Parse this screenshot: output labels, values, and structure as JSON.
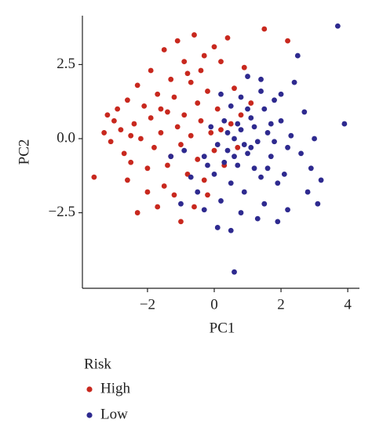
{
  "chart_data": {
    "type": "scatter",
    "x_label": "PC1",
    "y_label": "PC2",
    "legend_title": "Risk",
    "xlim": [
      -3.95,
      4.35
    ],
    "ylim": [
      -5.05,
      4.15
    ],
    "xticks": [
      {
        "value": -2,
        "label": "−2"
      },
      0,
      2,
      4
    ],
    "yticks": [
      {
        "value": -2.5,
        "label": "−2.5"
      },
      {
        "value": 0,
        "label": "0.0"
      },
      2.5
    ],
    "series": [
      {
        "name": "High",
        "color": "#c8281e",
        "x": [
          -3.6,
          -3.2,
          -3.0,
          -2.9,
          -2.8,
          -2.7,
          -2.6,
          -2.5,
          -2.4,
          -2.3,
          -2.3,
          -2.2,
          -2.1,
          -2.0,
          -1.9,
          -1.9,
          -1.8,
          -1.7,
          -1.7,
          -1.6,
          -1.5,
          -1.5,
          -1.4,
          -1.3,
          -1.3,
          -1.2,
          -1.1,
          -1.1,
          -1.0,
          -1.0,
          -0.9,
          -0.9,
          -0.8,
          -0.7,
          -0.7,
          -0.6,
          -0.6,
          -0.5,
          -0.5,
          -0.4,
          -0.3,
          -0.3,
          -0.2,
          -0.1,
          0.0,
          0.0,
          0.1,
          0.2,
          0.3,
          0.4,
          0.5,
          0.6,
          0.7,
          0.9,
          1.1,
          1.5,
          2.2,
          -3.3,
          -2.0,
          -1.2,
          -0.8,
          -0.2,
          -1.6,
          -2.5,
          -3.1,
          0.2,
          -0.4,
          -1.4,
          -2.6,
          0.8
        ],
        "values": [
          -1.3,
          0.8,
          0.6,
          1.0,
          0.3,
          -0.5,
          1.3,
          -0.8,
          0.5,
          1.8,
          -2.5,
          0.0,
          1.1,
          -1.0,
          2.3,
          0.7,
          -0.3,
          1.5,
          -2.3,
          0.2,
          3.0,
          -1.6,
          0.9,
          2.0,
          -0.6,
          1.4,
          0.4,
          3.3,
          -2.8,
          -0.2,
          2.6,
          0.8,
          -1.2,
          1.9,
          0.1,
          3.5,
          -2.3,
          1.2,
          -0.7,
          0.6,
          2.8,
          -1.4,
          1.6,
          0.2,
          3.1,
          -0.4,
          1.0,
          2.6,
          -0.9,
          3.4,
          0.5,
          1.7,
          -0.3,
          2.4,
          1.2,
          3.7,
          3.3,
          0.2,
          -1.8,
          -1.9,
          2.2,
          -1.9,
          1.0,
          0.1,
          -0.1,
          0.3,
          2.3,
          -0.9,
          -1.4,
          0.8
        ]
      },
      {
        "name": "Low",
        "color": "#2e2a8f",
        "x": [
          3.7,
          3.9,
          0.6,
          0.1,
          0.5,
          2.5,
          2.2,
          3.1,
          2.9,
          2.7,
          2.4,
          2.2,
          2.0,
          1.9,
          1.8,
          1.7,
          1.6,
          1.5,
          1.4,
          1.3,
          1.2,
          1.1,
          1.0,
          1.0,
          0.9,
          0.8,
          0.8,
          0.7,
          0.6,
          0.5,
          0.5,
          0.4,
          0.3,
          0.2,
          0.1,
          0.0,
          -0.1,
          -0.3,
          -0.5,
          -0.7,
          -0.9,
          -1.3,
          -1.0,
          -0.3,
          1.3,
          1.9,
          2.8,
          3.0,
          2.6,
          1.5,
          1.2,
          0.9,
          1.7,
          2.1,
          0.4,
          0.7,
          1.1,
          1.4,
          0.3,
          2.3,
          1.8,
          0.6,
          1.0,
          1.6,
          0.2,
          3.2,
          2.0,
          0.8,
          1.4,
          -0.2
        ],
        "values": [
          3.8,
          0.5,
          -4.5,
          -3.0,
          -3.1,
          2.8,
          -2.4,
          -2.2,
          -1.0,
          0.9,
          1.9,
          -0.3,
          0.6,
          -1.5,
          1.3,
          -0.6,
          0.2,
          -2.2,
          1.6,
          -0.1,
          -1.0,
          0.7,
          2.1,
          -0.5,
          -1.8,
          0.3,
          1.4,
          -0.9,
          0.0,
          1.1,
          -1.5,
          -0.4,
          0.6,
          -2.1,
          -0.2,
          -1.2,
          0.4,
          -0.6,
          -1.8,
          -1.3,
          -0.4,
          -0.6,
          -2.2,
          -2.4,
          -2.7,
          -2.8,
          -1.8,
          0.0,
          -0.5,
          1.0,
          0.4,
          -0.2,
          0.5,
          -1.2,
          0.2,
          0.5,
          -0.3,
          -1.3,
          -0.8,
          0.1,
          -0.1,
          -0.6,
          1.0,
          -1.0,
          1.5,
          -1.4,
          1.5,
          -2.5,
          2.0,
          -0.9
        ]
      }
    ]
  }
}
